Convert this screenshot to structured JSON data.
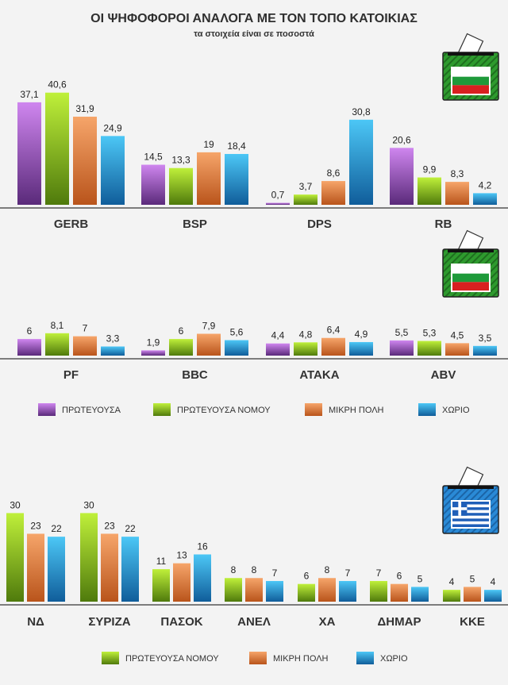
{
  "title": "ΟΙ ΨΗΦΟΦΟΡΟΙ ΑΝΑΛΟΓΑ ΜΕ ΤΟΝ ΤΟΠΟ ΚΑΤΟΙΚΙΑΣ",
  "subtitle": "τα στοιχεία είναι σε ποσοστά",
  "colors": {
    "purple": [
      "#cf86ef",
      "#5a2a7a"
    ],
    "green": [
      "#bff03a",
      "#4f7a0c"
    ],
    "orange": [
      "#f6a56a",
      "#b9541b"
    ],
    "blue": [
      "#4cc7f6",
      "#105d9a"
    ]
  },
  "chart_data": [
    {
      "type": "bar",
      "categories": [
        "GERB",
        "BSP",
        "DPS",
        "RB"
      ],
      "series": [
        {
          "name": "ΠΡΩΤΕΥΟΥΣΑ",
          "color": "purple",
          "values": [
            37.1,
            14.5,
            0.7,
            20.6
          ],
          "labels": [
            "37,1",
            "14,5",
            "0,7",
            "20,6"
          ]
        },
        {
          "name": "ΠΡΩΤΕΥΟΥΣΑ ΝΟΜΟΥ",
          "color": "green",
          "values": [
            40.6,
            13.3,
            3.7,
            9.9
          ],
          "labels": [
            "40,6",
            "13,3",
            "3,7",
            "9,9"
          ]
        },
        {
          "name": "ΜΙΚΡΗ ΠΟΛΗ",
          "color": "orange",
          "values": [
            31.9,
            19,
            8.6,
            8.3
          ],
          "labels": [
            "31,9",
            "19",
            "8,6",
            "8,3"
          ]
        },
        {
          "name": "ΧΩΡΙΟ",
          "color": "blue",
          "values": [
            24.9,
            18.4,
            30.8,
            4.2
          ],
          "labels": [
            "24,9",
            "18,4",
            "30,8",
            "4,2"
          ]
        }
      ],
      "flag": "bulgaria"
    },
    {
      "type": "bar",
      "categories": [
        "PF",
        "BBC",
        "ΑΤΑΚΑ",
        "ABV"
      ],
      "series": [
        {
          "name": "ΠΡΩΤΕΥΟΥΣΑ",
          "color": "purple",
          "values": [
            6,
            1.9,
            4.4,
            5.5
          ],
          "labels": [
            "6",
            "1,9",
            "4,4",
            "5,5"
          ]
        },
        {
          "name": "ΠΡΩΤΕΥΟΥΣΑ ΝΟΜΟΥ",
          "color": "green",
          "values": [
            8.1,
            6,
            4.8,
            5.3
          ],
          "labels": [
            "8,1",
            "6",
            "4,8",
            "5,3"
          ]
        },
        {
          "name": "ΜΙΚΡΗ ΠΟΛΗ",
          "color": "orange",
          "values": [
            7,
            7.9,
            6.4,
            4.5
          ],
          "labels": [
            "7",
            "7,9",
            "6,4",
            "4,5"
          ]
        },
        {
          "name": "ΧΩΡΙΟ",
          "color": "blue",
          "values": [
            3.3,
            5.6,
            4.9,
            3.5
          ],
          "labels": [
            "3,3",
            "5,6",
            "4,9",
            "3,5"
          ]
        }
      ],
      "flag": "bulgaria",
      "legend": [
        {
          "label": "ΠΡΩΤΕΥΟΥΣΑ",
          "color": "purple"
        },
        {
          "label": "ΠΡΩΤΕΥΟΥΣΑ ΝΟΜΟΥ",
          "color": "green"
        },
        {
          "label": "ΜΙΚΡΗ ΠΟΛΗ",
          "color": "orange"
        },
        {
          "label": "ΧΩΡΙΟ",
          "color": "blue"
        }
      ]
    },
    {
      "type": "bar",
      "categories": [
        "ΝΔ",
        "ΣΥΡΙΖΑ",
        "ΠΑΣΟΚ",
        "ΑΝΕΛ",
        "ΧΑ",
        "ΔΗΜΑΡ",
        "ΚΚΕ"
      ],
      "series": [
        {
          "name": "ΠΡΩΤΕΥΟΥΣΑ ΝΟΜΟΥ",
          "color": "green",
          "values": [
            30,
            30,
            11,
            8,
            6,
            7,
            4
          ],
          "labels": [
            "30",
            "30",
            "11",
            "8",
            "6",
            "7",
            "4"
          ]
        },
        {
          "name": "ΜΙΚΡΗ ΠΟΛΗ",
          "color": "orange",
          "values": [
            23,
            23,
            13,
            8,
            8,
            6,
            5
          ],
          "labels": [
            "23",
            "23",
            "13",
            "8",
            "8",
            "6",
            "5"
          ]
        },
        {
          "name": "ΧΩΡΙΟ",
          "color": "blue",
          "values": [
            22,
            22,
            16,
            7,
            7,
            5,
            4
          ],
          "labels": [
            "22",
            "22",
            "16",
            "7",
            "7",
            "5",
            "4"
          ]
        }
      ],
      "flag": "greece",
      "legend": [
        {
          "label": "ΠΡΩΤΕΥΟΥΣΑ ΝΟΜΟΥ",
          "color": "green"
        },
        {
          "label": "ΜΙΚΡΗ ΠΟΛΗ",
          "color": "orange"
        },
        {
          "label": "ΧΩΡΙΟ",
          "color": "blue"
        }
      ]
    }
  ]
}
